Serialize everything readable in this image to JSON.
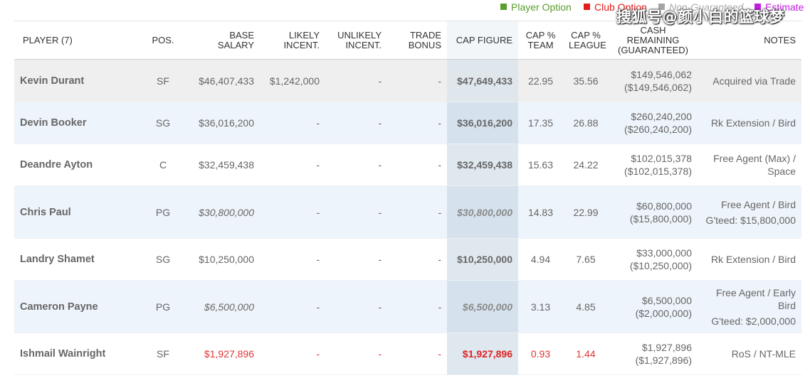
{
  "legend": {
    "player_option": "Player Option",
    "club_option": "Club Option",
    "non_guaranteed": "Non-Guaranteed",
    "estimate": "Estimate",
    "colors": {
      "player_option": "#5a9e2c",
      "club_option": "#e41c1c",
      "non_guaranteed": "#a5a5a5",
      "estimate": "#c21ee0"
    }
  },
  "watermark": "搜狐号@颜小白的篮球梦",
  "columns": {
    "player": "PLAYER (7)",
    "pos": "POS.",
    "base_salary": "BASE SALARY",
    "likely": "LIKELY INCENT.",
    "unlikely": "UNLIKELY INCENT.",
    "trade_bonus": "TRADE BONUS",
    "cap_figure": "CAP FIGURE",
    "cap_team": "CAP % TEAM",
    "cap_league": "CAP % LEAGUE",
    "cash_remaining": "CASH REMAINING (GUARANTEED)",
    "notes": "NOTES"
  },
  "rows": [
    {
      "player": "Kevin Durant",
      "pos": "SF",
      "base_salary": "$46,407,433",
      "likely": "$1,242,000",
      "unlikely": "-",
      "trade_bonus": "-",
      "cap_figure": "$47,649,433",
      "cap_team": "22.95",
      "cap_league": "35.56",
      "cash": "$149,546,062",
      "cash_guaranteed": "($149,546,062)",
      "notes": "Acquired via Trade"
    },
    {
      "player": "Devin Booker",
      "pos": "SG",
      "base_salary": "$36,016,200",
      "likely": "-",
      "unlikely": "-",
      "trade_bonus": "-",
      "cap_figure": "$36,016,200",
      "cap_team": "17.35",
      "cap_league": "26.88",
      "cash": "$260,240,200",
      "cash_guaranteed": "($260,240,200)",
      "notes": "Rk Extension / Bird"
    },
    {
      "player": "Deandre Ayton",
      "pos": "C",
      "base_salary": "$32,459,438",
      "likely": "-",
      "unlikely": "-",
      "trade_bonus": "-",
      "cap_figure": "$32,459,438",
      "cap_team": "15.63",
      "cap_league": "24.22",
      "cash": "$102,015,378",
      "cash_guaranteed": "($102,015,378)",
      "notes": "Free Agent (Max) / Space"
    },
    {
      "player": "Chris Paul",
      "pos": "PG",
      "base_salary": "$30,800,000",
      "likely": "-",
      "unlikely": "-",
      "trade_bonus": "-",
      "cap_figure": "$30,800,000",
      "cap_team": "14.83",
      "cap_league": "22.99",
      "cash": "$60,800,000",
      "cash_guaranteed": "($15,800,000)",
      "notes": "Free Agent / Bird",
      "notes_extra": "G'teed: $15,800,000"
    },
    {
      "player": "Landry Shamet",
      "pos": "SG",
      "base_salary": "$10,250,000",
      "likely": "-",
      "unlikely": "-",
      "trade_bonus": "-",
      "cap_figure": "$10,250,000",
      "cap_team": "4.94",
      "cap_league": "7.65",
      "cash": "$33,000,000",
      "cash_guaranteed": "($10,250,000)",
      "notes": "Rk Extension / Bird"
    },
    {
      "player": "Cameron Payne",
      "pos": "PG",
      "base_salary": "$6,500,000",
      "likely": "-",
      "unlikely": "-",
      "trade_bonus": "-",
      "cap_figure": "$6,500,000",
      "cap_team": "3.13",
      "cap_league": "4.85",
      "cash": "$6,500,000",
      "cash_guaranteed": "($2,000,000)",
      "notes": "Free Agent / Early Bird",
      "notes_extra": "G'teed: $2,000,000"
    },
    {
      "player": "Ishmail Wainright",
      "pos": "SF",
      "base_salary": "$1,927,896",
      "likely": "-",
      "unlikely": "-",
      "trade_bonus": "-",
      "cap_figure": "$1,927,896",
      "cap_team": "0.93",
      "cap_league": "1.44",
      "cash": "$1,927,896",
      "cash_guaranteed": "($1,927,896)",
      "notes": "RoS / NT-MLE"
    }
  ]
}
